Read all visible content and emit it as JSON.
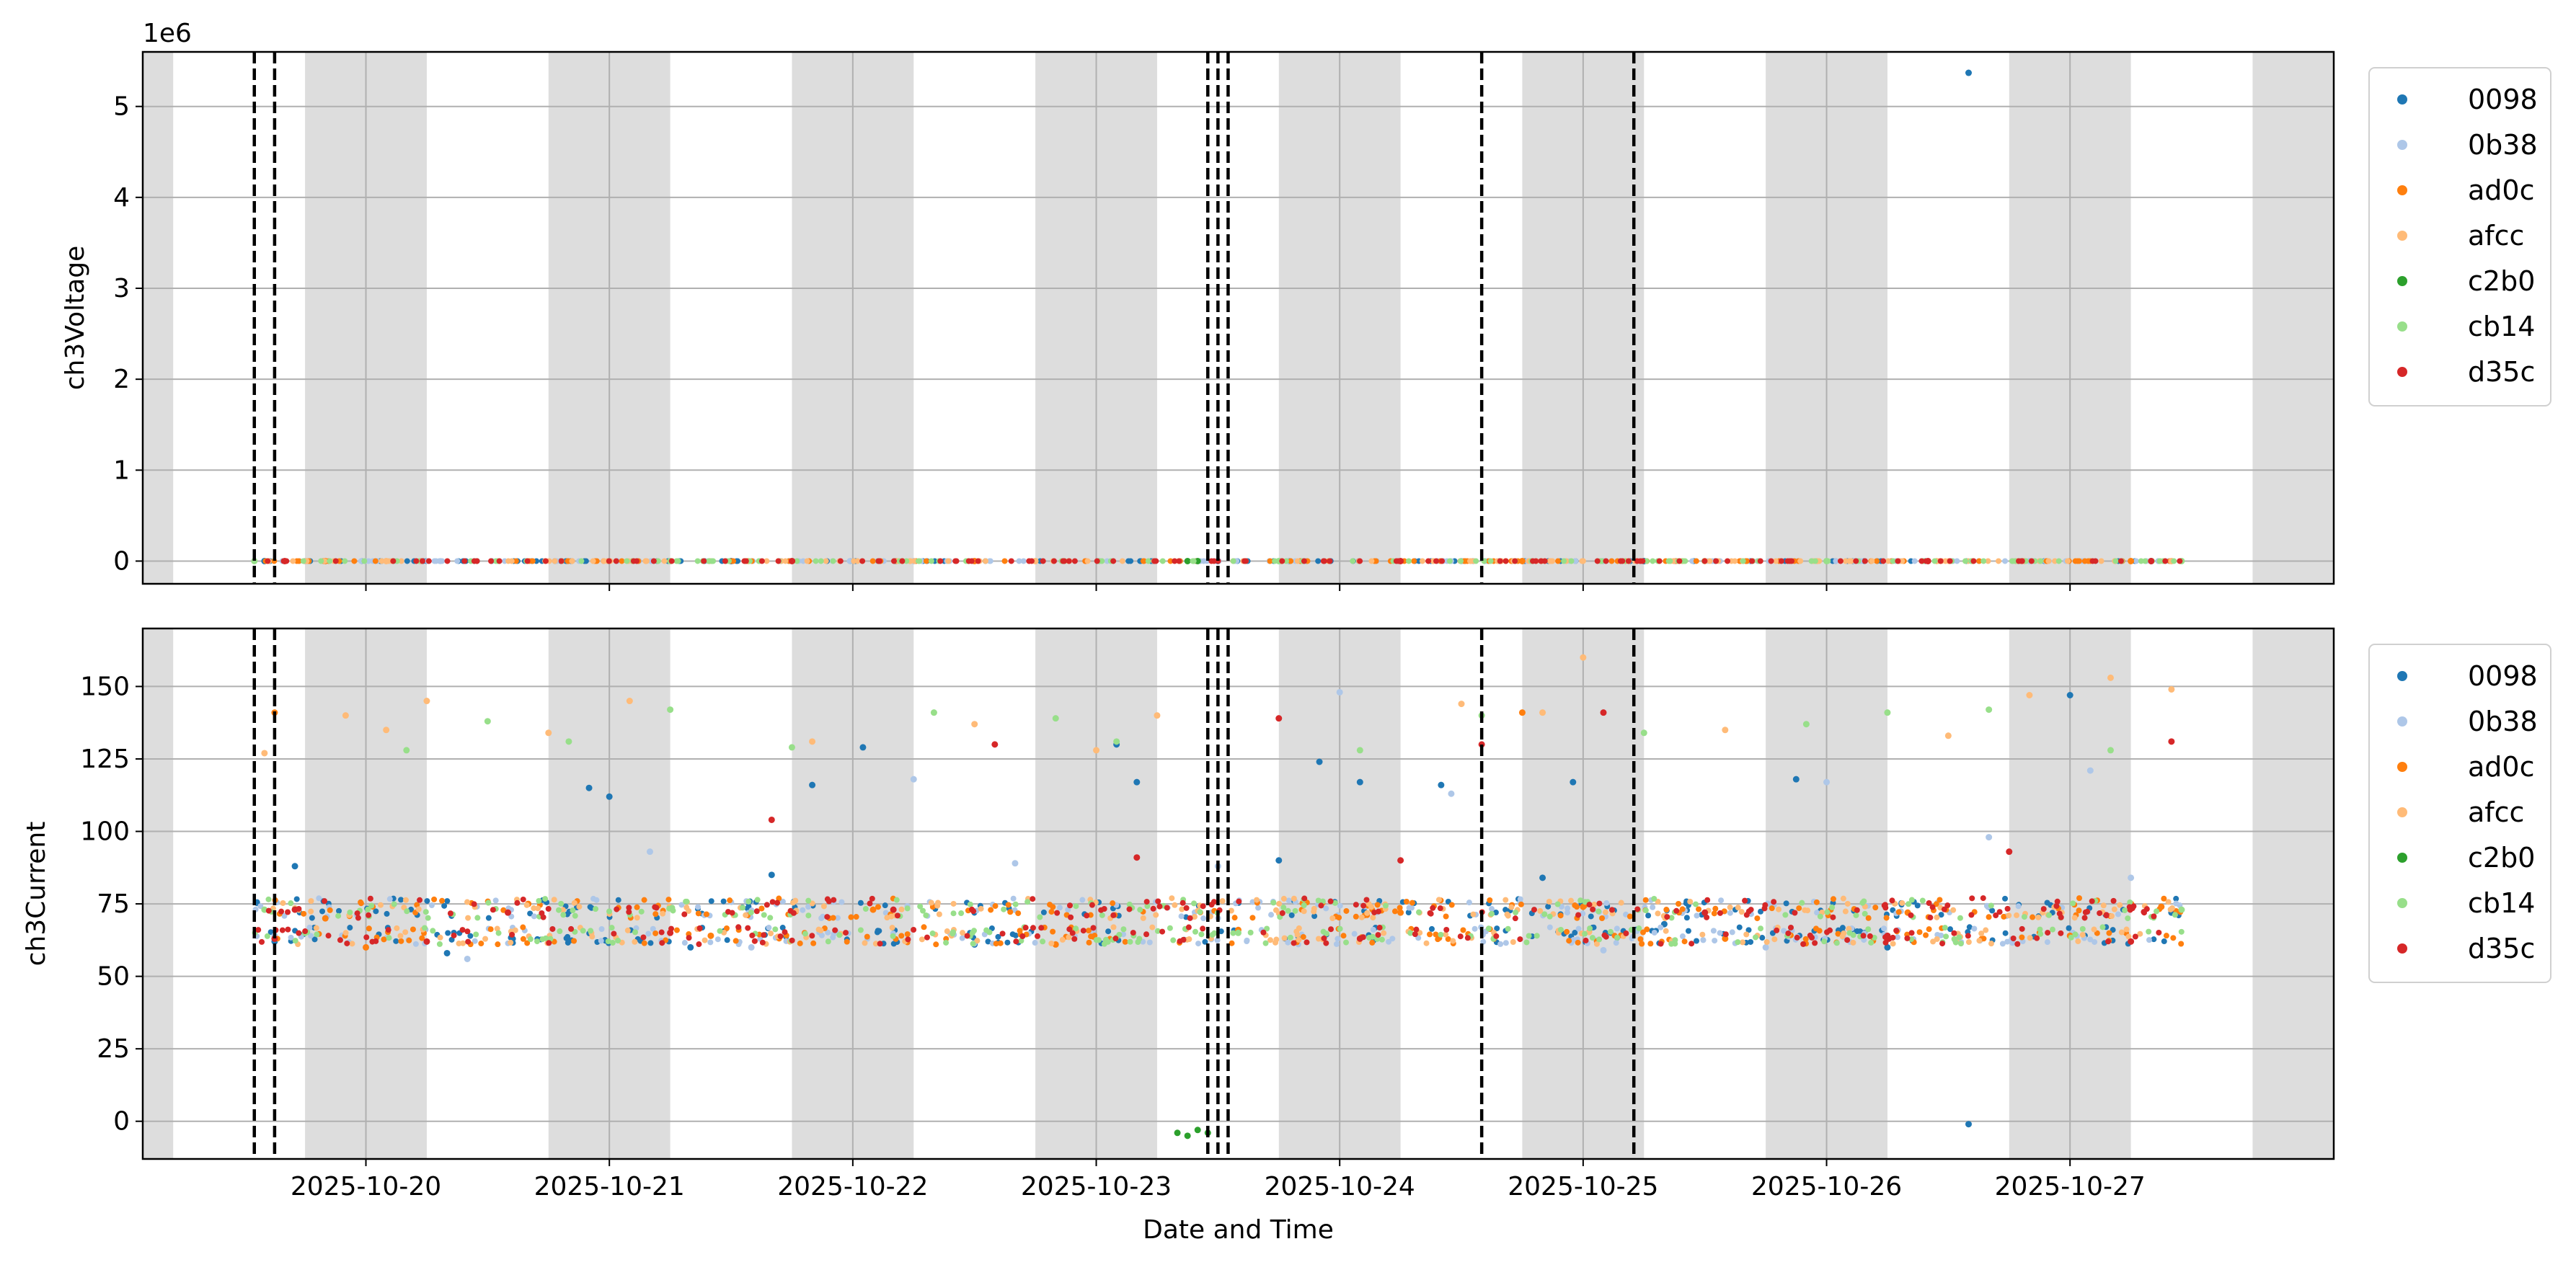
{
  "chart_data": [
    {
      "type": "scatter",
      "ylabel": "ch3Voltage",
      "offset_text": "1e6",
      "ylim": [
        -250000,
        5600000
      ],
      "yticks": [
        0,
        1000000,
        2000000,
        3000000,
        4000000,
        5000000
      ],
      "ytick_labels": [
        "0",
        "1",
        "2",
        "3",
        "4",
        "5"
      ],
      "grid": true,
      "legend_position": "outside right, top",
      "series": [
        {
          "name": "0098",
          "points": [
            [
              "2025-10-19T14:00",
              0
            ],
            [
              "2025-10-21T12:00",
              0
            ],
            [
              "2025-10-23T12:00",
              0
            ],
            [
              "2025-10-25T06:00",
              0
            ],
            [
              "2025-10-26T14:00",
              5370000
            ],
            [
              "2025-10-27T08:00",
              0
            ]
          ]
        },
        {
          "name": "0b38",
          "points": [
            [
              "2025-10-19T18:00",
              0
            ],
            [
              "2025-10-22T06:00",
              0
            ],
            [
              "2025-10-24T12:00",
              0
            ],
            [
              "2025-10-26T20:00",
              0
            ]
          ]
        },
        {
          "name": "ad0c",
          "points": [
            [
              "2025-10-19T20:00",
              0
            ],
            [
              "2025-10-22T12:00",
              0
            ],
            [
              "2025-10-24T18:00",
              0
            ],
            [
              "2025-10-27T06:00",
              0
            ]
          ]
        },
        {
          "name": "afcc",
          "points": [
            [
              "2025-10-20T02:00",
              0
            ],
            [
              "2025-10-22T18:00",
              0
            ],
            [
              "2025-10-25T12:00",
              0
            ],
            [
              "2025-10-27T10:00",
              0
            ]
          ]
        },
        {
          "name": "c2b0",
          "points": [
            [
              "2025-10-23T09:00",
              0
            ],
            [
              "2025-10-23T10:00",
              0
            ]
          ]
        },
        {
          "name": "cb14",
          "points": [
            [
              "2025-10-19T13:00",
              0
            ],
            [
              "2025-10-21T06:00",
              0
            ],
            [
              "2025-10-23T18:00",
              0
            ],
            [
              "2025-10-26T00:00",
              0
            ],
            [
              "2025-10-27T11:00",
              0
            ]
          ]
        },
        {
          "name": "d35c",
          "points": [
            [
              "2025-10-19T16:00",
              0
            ],
            [
              "2025-10-21T18:00",
              0
            ],
            [
              "2025-10-24T06:00",
              0
            ],
            [
              "2025-10-26T10:00",
              0
            ],
            [
              "2025-10-27T08:00",
              0
            ]
          ]
        }
      ]
    },
    {
      "type": "scatter",
      "ylabel": "ch3Current",
      "xlabel": "Date and Time",
      "ylim": [
        -13,
        170
      ],
      "yticks": [
        0,
        25,
        50,
        75,
        100,
        125,
        150
      ],
      "ytick_labels": [
        "0",
        "25",
        "50",
        "75",
        "100",
        "125",
        "150"
      ],
      "xticks": [
        "2025-10-20",
        "2025-10-21",
        "2025-10-22",
        "2025-10-23",
        "2025-10-24",
        "2025-10-25",
        "2025-10-26",
        "2025-10-27"
      ],
      "grid": true,
      "legend_position": "outside right, top",
      "series": [
        {
          "name": "0098",
          "points": [
            [
              "2025-10-19T15:00",
              62
            ],
            [
              "2025-10-19T17:00",
              88
            ],
            [
              "2025-10-20T08:00",
              58
            ],
            [
              "2025-10-20T22:00",
              115
            ],
            [
              "2025-10-21T00:00",
              112
            ],
            [
              "2025-10-21T08:00",
              60
            ],
            [
              "2025-10-21T16:00",
              85
            ],
            [
              "2025-10-21T20:00",
              116
            ],
            [
              "2025-10-22T01:00",
              129
            ],
            [
              "2025-10-22T12:00",
              61
            ],
            [
              "2025-10-23T02:00",
              130
            ],
            [
              "2025-10-23T04:00",
              117
            ],
            [
              "2025-10-23T18:00",
              90
            ],
            [
              "2025-10-23T22:00",
              124
            ],
            [
              "2025-10-24T02:00",
              117
            ],
            [
              "2025-10-24T10:00",
              116
            ],
            [
              "2025-10-24T20:00",
              84
            ],
            [
              "2025-10-24T23:00",
              117
            ],
            [
              "2025-10-25T08:00",
              68
            ],
            [
              "2025-10-25T21:00",
              118
            ],
            [
              "2025-10-26T06:00",
              60
            ],
            [
              "2025-10-26T14:00",
              -1
            ],
            [
              "2025-10-27T00:00",
              147
            ],
            [
              "2025-10-27T10:00",
              72
            ]
          ]
        },
        {
          "name": "0b38",
          "points": [
            [
              "2025-10-19T15:00",
              64
            ],
            [
              "2025-10-20T10:00",
              56
            ],
            [
              "2025-10-21T04:00",
              93
            ],
            [
              "2025-10-21T14:00",
              60
            ],
            [
              "2025-10-22T06:00",
              118
            ],
            [
              "2025-10-22T16:00",
              89
            ],
            [
              "2025-10-23T12:00",
              88
            ],
            [
              "2025-10-24T00:00",
              148
            ],
            [
              "2025-10-24T11:00",
              113
            ],
            [
              "2025-10-25T02:00",
              59
            ],
            [
              "2025-10-25T18:00",
              60
            ],
            [
              "2025-10-26T00:00",
              117
            ],
            [
              "2025-10-26T16:00",
              98
            ],
            [
              "2025-10-27T02:00",
              121
            ],
            [
              "2025-10-27T06:00",
              84
            ]
          ]
        },
        {
          "name": "ad0c",
          "points": [
            [
              "2025-10-19T15:00",
              141
            ],
            [
              "2025-10-19T20:00",
              70
            ],
            [
              "2025-10-20T00:00",
              60
            ],
            [
              "2025-10-20T16:00",
              75
            ],
            [
              "2025-10-21T10:00",
              64
            ],
            [
              "2025-10-22T02:00",
              73
            ],
            [
              "2025-10-22T20:00",
              61
            ],
            [
              "2025-10-23T14:00",
              66
            ],
            [
              "2025-10-24T06:00",
              72
            ],
            [
              "2025-10-24T18:00",
              141
            ],
            [
              "2025-10-25T00:00",
              74
            ],
            [
              "2025-10-25T14:00",
              63
            ],
            [
              "2025-10-26T08:00",
              72
            ],
            [
              "2025-10-27T00:00",
              64
            ],
            [
              "2025-10-27T09:00",
              74
            ]
          ]
        },
        {
          "name": "afcc",
          "points": [
            [
              "2025-10-19T14:00",
              127
            ],
            [
              "2025-10-19T22:00",
              140
            ],
            [
              "2025-10-20T02:00",
              135
            ],
            [
              "2025-10-20T06:00",
              145
            ],
            [
              "2025-10-20T18:00",
              134
            ],
            [
              "2025-10-21T02:00",
              145
            ],
            [
              "2025-10-21T20:00",
              131
            ],
            [
              "2025-10-22T12:00",
              137
            ],
            [
              "2025-10-23T00:00",
              128
            ],
            [
              "2025-10-23T06:00",
              140
            ],
            [
              "2025-10-24T12:00",
              144
            ],
            [
              "2025-10-24T20:00",
              141
            ],
            [
              "2025-10-25T00:00",
              160
            ],
            [
              "2025-10-25T14:00",
              135
            ],
            [
              "2025-10-26T12:00",
              133
            ],
            [
              "2025-10-26T20:00",
              147
            ],
            [
              "2025-10-27T04:00",
              153
            ],
            [
              "2025-10-27T10:00",
              149
            ]
          ]
        },
        {
          "name": "c2b0",
          "points": [
            [
              "2025-10-23T08:00",
              -4
            ],
            [
              "2025-10-23T09:00",
              -5
            ],
            [
              "2025-10-23T10:00",
              -3
            ],
            [
              "2025-10-23T11:00",
              -4
            ]
          ]
        },
        {
          "name": "cb14",
          "points": [
            [
              "2025-10-19T14:00",
              73
            ],
            [
              "2025-10-19T18:00",
              65
            ],
            [
              "2025-10-20T04:00",
              128
            ],
            [
              "2025-10-20T12:00",
              138
            ],
            [
              "2025-10-20T20:00",
              131
            ],
            [
              "2025-10-21T06:00",
              142
            ],
            [
              "2025-10-21T18:00",
              129
            ],
            [
              "2025-10-22T08:00",
              141
            ],
            [
              "2025-10-22T20:00",
              139
            ],
            [
              "2025-10-23T02:00",
              131
            ],
            [
              "2025-10-23T14:00",
              65
            ],
            [
              "2025-10-24T02:00",
              128
            ],
            [
              "2025-10-24T14:00",
              140
            ],
            [
              "2025-10-25T06:00",
              134
            ],
            [
              "2025-10-25T22:00",
              137
            ],
            [
              "2025-10-26T06:00",
              141
            ],
            [
              "2025-10-26T16:00",
              142
            ],
            [
              "2025-10-27T04:00",
              128
            ],
            [
              "2025-10-27T11:00",
              73
            ]
          ]
        },
        {
          "name": "d35c",
          "points": [
            [
              "2025-10-19T15:00",
              63
            ],
            [
              "2025-10-19T17:00",
              73
            ],
            [
              "2025-10-20T06:00",
              62
            ],
            [
              "2025-10-20T14:00",
              72
            ],
            [
              "2025-10-21T06:00",
              65
            ],
            [
              "2025-10-21T16:00",
              104
            ],
            [
              "2025-10-22T04:00",
              73
            ],
            [
              "2025-10-22T14:00",
              130
            ],
            [
              "2025-10-23T04:00",
              91
            ],
            [
              "2025-10-23T18:00",
              139
            ],
            [
              "2025-10-24T02:00",
              63
            ],
            [
              "2025-10-24T06:00",
              90
            ],
            [
              "2025-10-24T14:00",
              130
            ],
            [
              "2025-10-25T02:00",
              141
            ],
            [
              "2025-10-25T12:00",
              72
            ],
            [
              "2025-10-26T06:00",
              64
            ],
            [
              "2025-10-26T18:00",
              93
            ],
            [
              "2025-10-27T06:00",
              62
            ],
            [
              "2025-10-27T10:00",
              131
            ]
          ]
        }
      ]
    }
  ],
  "legend": {
    "entries": [
      "0098",
      "0b38",
      "ad0c",
      "afcc",
      "c2b0",
      "cb14",
      "d35c"
    ],
    "colors": [
      "#1f77b4",
      "#aec7e8",
      "#ff7f0e",
      "#ffbb78",
      "#2ca02c",
      "#98df8a",
      "#d62728"
    ]
  },
  "shading": {
    "color": "#dddddd",
    "intervals": [
      [
        "2025-10-19T02:00",
        "2025-10-19T05:00"
      ],
      [
        "2025-10-19T18:00",
        "2025-10-20T06:00"
      ],
      [
        "2025-10-20T18:00",
        "2025-10-21T06:00"
      ],
      [
        "2025-10-21T18:00",
        "2025-10-22T06:00"
      ],
      [
        "2025-10-22T18:00",
        "2025-10-23T06:00"
      ],
      [
        "2025-10-23T18:00",
        "2025-10-24T06:00"
      ],
      [
        "2025-10-24T18:00",
        "2025-10-25T06:00"
      ],
      [
        "2025-10-25T18:00",
        "2025-10-26T06:00"
      ],
      [
        "2025-10-26T18:00",
        "2025-10-27T06:00"
      ],
      [
        "2025-10-27T18:00",
        "2025-10-28T02:00"
      ]
    ]
  },
  "event_lines": [
    "2025-10-19T13:00",
    "2025-10-19T15:00",
    "2025-10-23T11:00",
    "2025-10-23T12:00",
    "2025-10-23T13:00",
    "2025-10-24T14:00",
    "2025-10-25T05:00"
  ],
  "xlim": [
    "2025-10-19T02:00",
    "2025-10-28T02:00"
  ]
}
